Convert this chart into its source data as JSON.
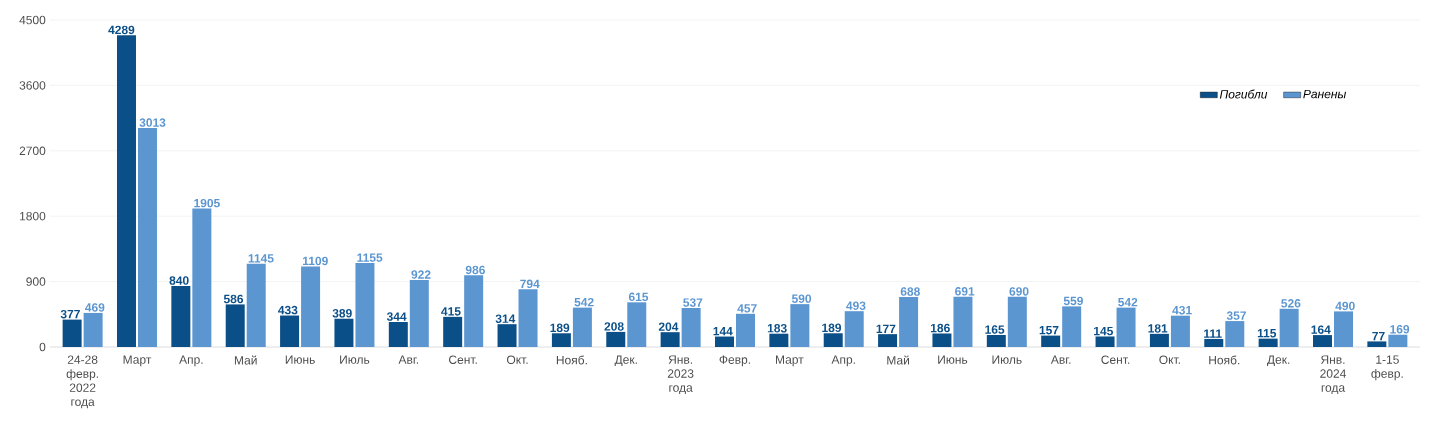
{
  "chart_data": {
    "type": "bar",
    "categories": [
      "24-28 февр. 2022 года",
      "Март",
      "Апр.",
      "Май",
      "Июнь",
      "Июль",
      "Авг.",
      "Сент.",
      "Окт.",
      "Нояб.",
      "Дек.",
      "Янв. 2023 года",
      "Февр.",
      "Март",
      "Апр.",
      "Май",
      "Июнь",
      "Июль",
      "Авг.",
      "Сент.",
      "Окт.",
      "Нояб.",
      "Дек.",
      "Янв. 2024 года",
      "1-15 февр."
    ],
    "series": [
      {
        "name": "Погибли",
        "color": "#0b4f88",
        "values": [
          377,
          4289,
          840,
          586,
          433,
          389,
          344,
          415,
          314,
          189,
          208,
          204,
          144,
          183,
          189,
          177,
          186,
          165,
          157,
          145,
          181,
          111,
          115,
          164,
          77
        ]
      },
      {
        "name": "Ранены",
        "color": "#5b96d1",
        "values": [
          469,
          3013,
          1905,
          1145,
          1109,
          1155,
          922,
          986,
          794,
          542,
          615,
          537,
          457,
          590,
          493,
          688,
          691,
          690,
          559,
          542,
          431,
          357,
          526,
          490,
          169
        ]
      }
    ],
    "ylim": [
      0,
      4500
    ],
    "yticks": [
      0,
      900,
      1800,
      2700,
      3600,
      4500
    ],
    "grid": "y",
    "legend": "top right",
    "data_labels": true
  }
}
